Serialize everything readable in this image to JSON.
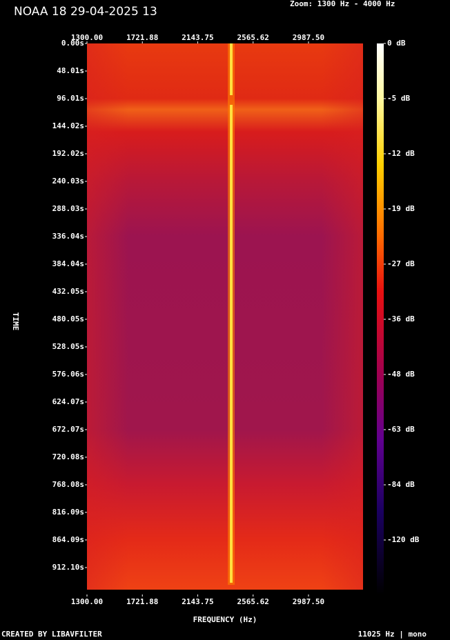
{
  "chart_data": {
    "type": "spectrogram",
    "title": "NOAA 18 29-04-2025 13",
    "subtitle": "Zoom: 1300 Hz - 4000 Hz",
    "x_label": "FREQUENCY (Hz)",
    "y_label": "TIME",
    "footer_left": "CREATED BY LIBAVFILTER",
    "footer_right": "11025 Hz | mono",
    "xlim": [
      1300,
      3403
    ],
    "xticks": [
      {
        "value": 1300,
        "label": "1300.00"
      },
      {
        "value": 1721.88,
        "label": "1721.88"
      },
      {
        "value": 2143.75,
        "label": "2143.75"
      },
      {
        "value": 2565.62,
        "label": "2565.62"
      },
      {
        "value": 2987.5,
        "label": "2987.50"
      }
    ],
    "ylim": [
      0,
      959
    ],
    "yticks": [
      {
        "value": 0,
        "label": "0.00s"
      },
      {
        "value": 48.01,
        "label": "48.01s"
      },
      {
        "value": 96.01,
        "label": "96.01s"
      },
      {
        "value": 144.02,
        "label": "144.02s"
      },
      {
        "value": 192.02,
        "label": "192.02s"
      },
      {
        "value": 240.03,
        "label": "240.03s"
      },
      {
        "value": 288.03,
        "label": "288.03s"
      },
      {
        "value": 336.04,
        "label": "336.04s"
      },
      {
        "value": 384.04,
        "label": "384.04s"
      },
      {
        "value": 432.05,
        "label": "432.05s"
      },
      {
        "value": 480.05,
        "label": "480.05s"
      },
      {
        "value": 528.05,
        "label": "528.05s"
      },
      {
        "value": 576.06,
        "label": "576.06s"
      },
      {
        "value": 624.07,
        "label": "624.07s"
      },
      {
        "value": 672.07,
        "label": "672.07s"
      },
      {
        "value": 720.08,
        "label": "720.08s"
      },
      {
        "value": 768.08,
        "label": "768.08s"
      },
      {
        "value": 816.09,
        "label": "816.09s"
      },
      {
        "value": 864.09,
        "label": "864.09s"
      },
      {
        "value": 912.1,
        "label": "912.10s"
      }
    ],
    "colorbar_ticks": [
      {
        "value": 0,
        "label": "0 dB"
      },
      {
        "value": -5,
        "label": "-5 dB"
      },
      {
        "value": -12,
        "label": "-12 dB"
      },
      {
        "value": -19,
        "label": "-19 dB"
      },
      {
        "value": -27,
        "label": "-27 dB"
      },
      {
        "value": -36,
        "label": "-36 dB"
      },
      {
        "value": -48,
        "label": "-48 dB"
      },
      {
        "value": -63,
        "label": "-63 dB"
      },
      {
        "value": -84,
        "label": "-84 dB"
      },
      {
        "value": -120,
        "label": "-120 dB"
      }
    ]
  }
}
